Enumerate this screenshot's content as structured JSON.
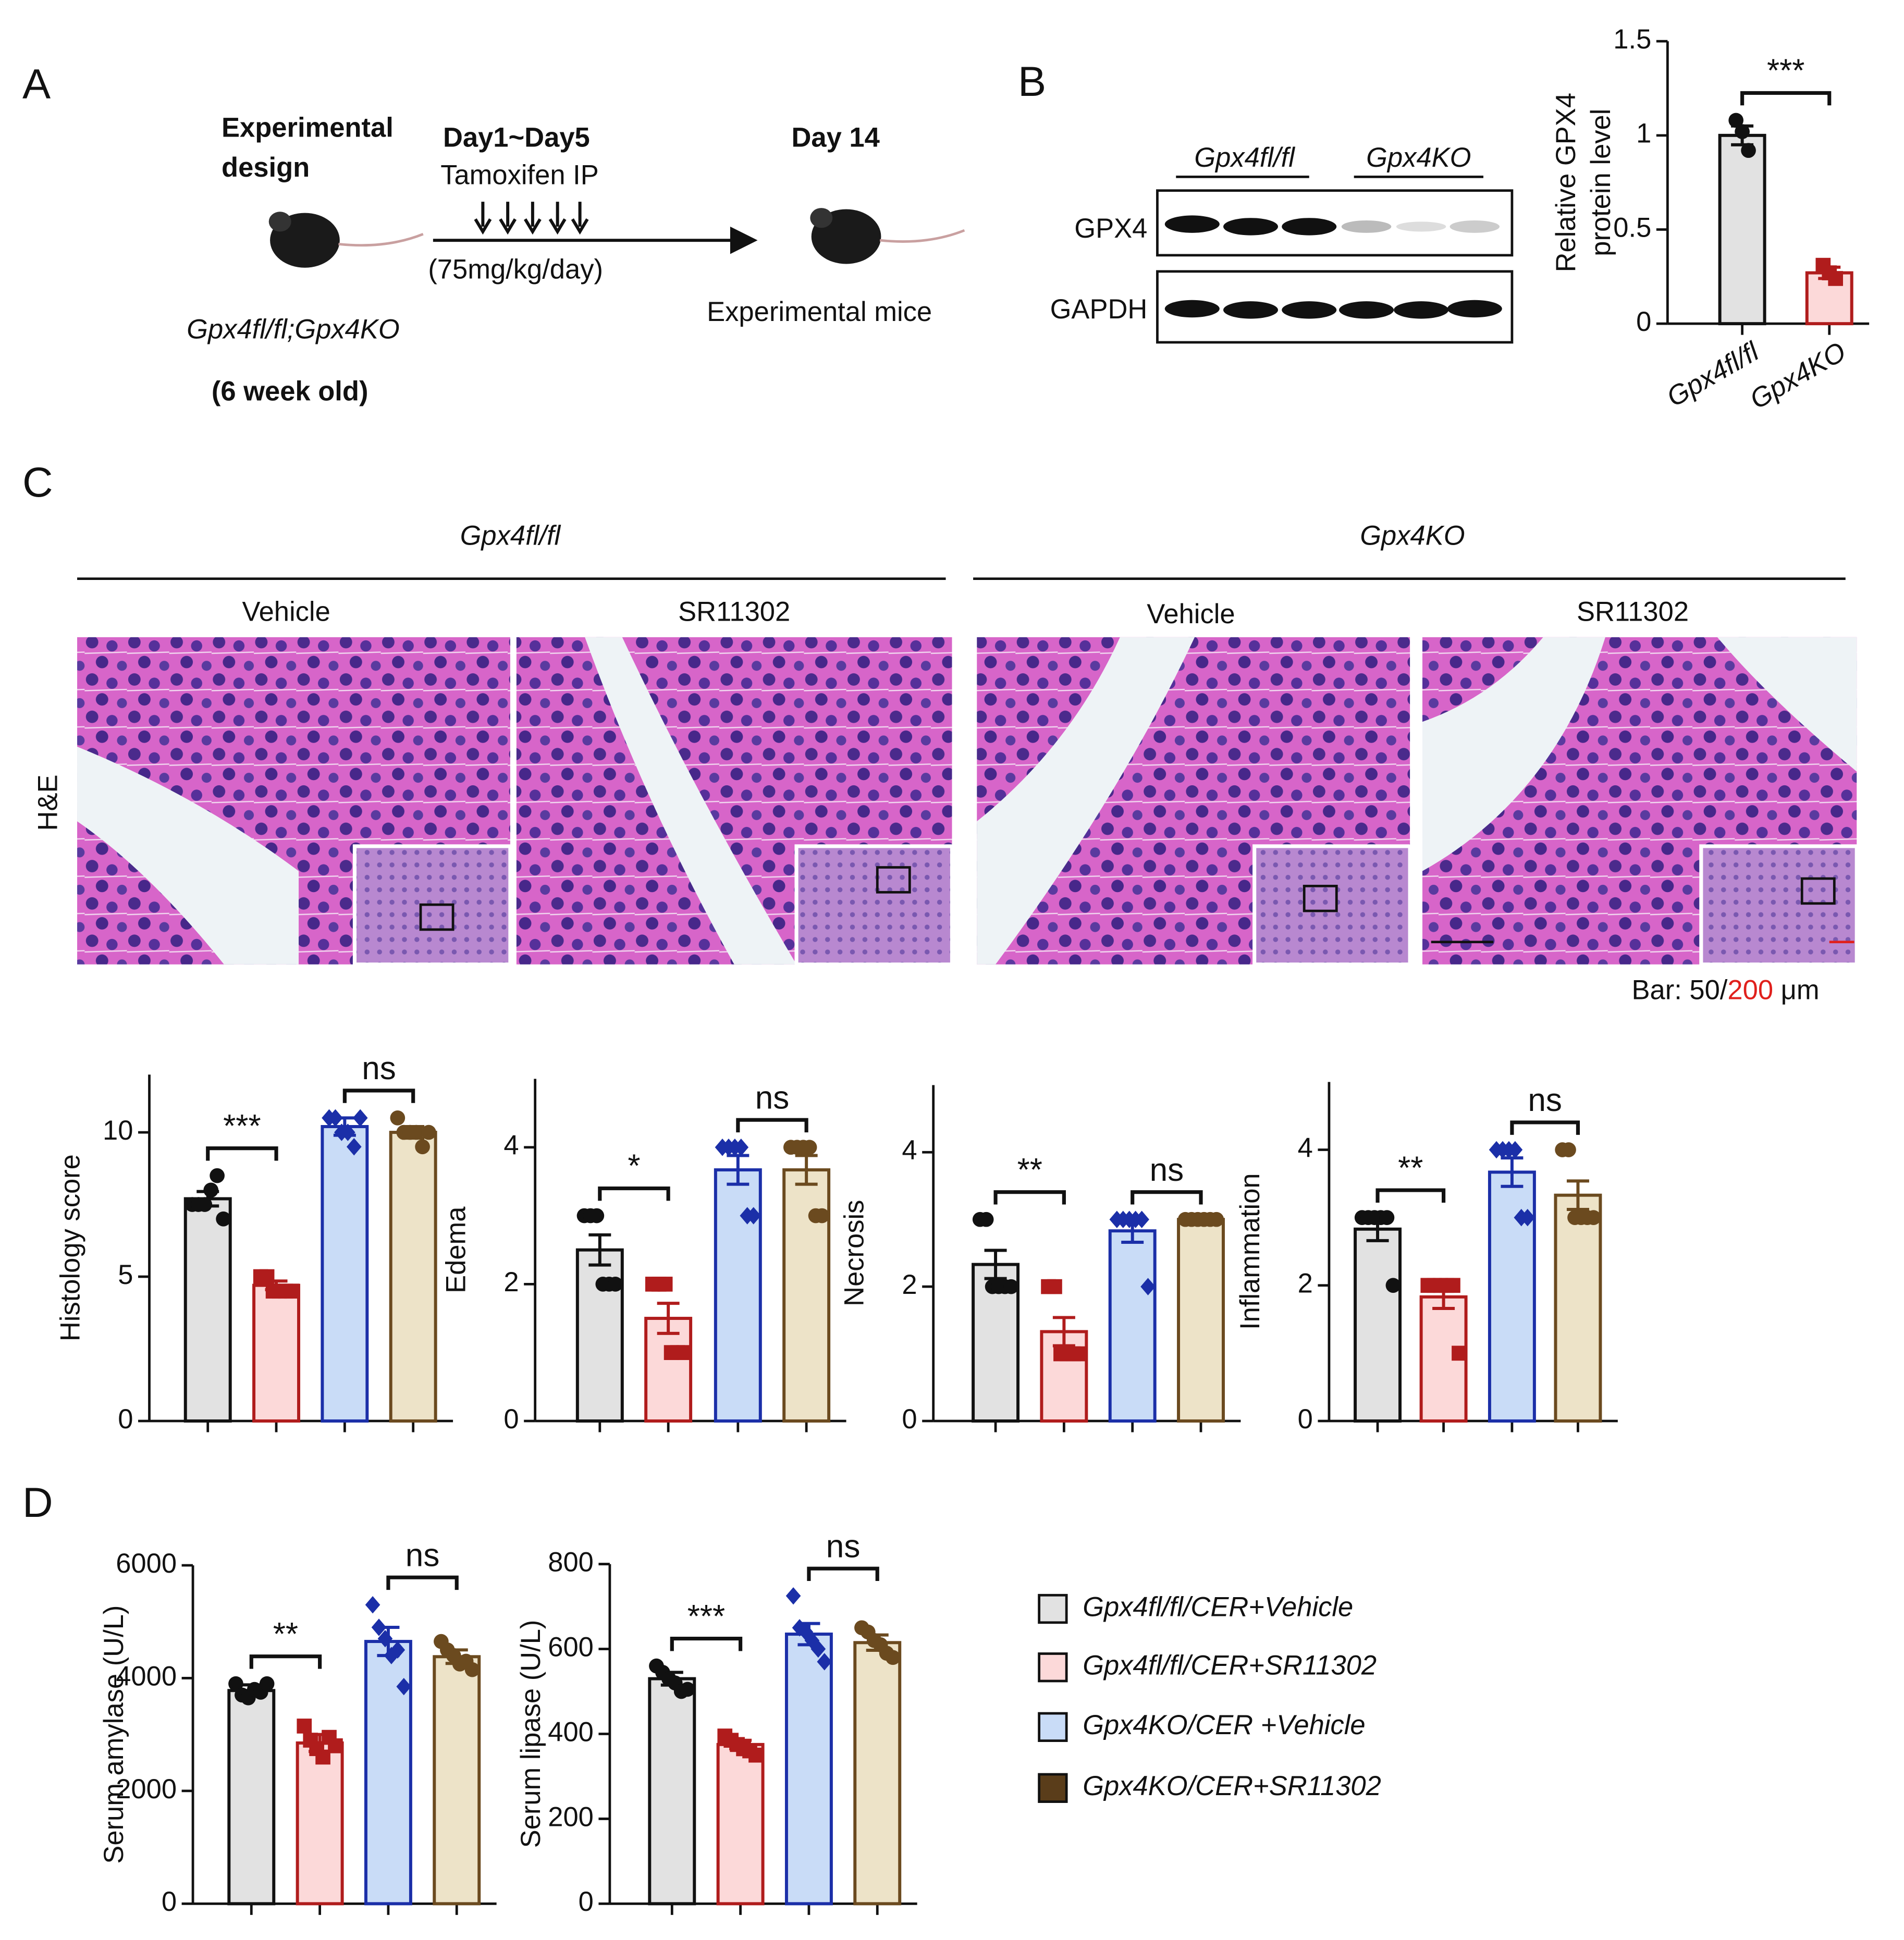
{
  "panel_labels": [
    "A",
    "B",
    "C",
    "D"
  ],
  "design": {
    "title": [
      "Experimental",
      "design"
    ],
    "period": "Day1~Day5",
    "treatment": "Tamoxifen IP",
    "dose": "(75mg/kg/day)",
    "end_day": "Day 14",
    "end_label": "Experimental mice",
    "genotype": "Gpx4fl/fl;Gpx4KO",
    "age": "(6 week old)"
  },
  "blot": {
    "groups": [
      "Gpx4fl/fl",
      "Gpx4KO"
    ],
    "rows": [
      "GPX4",
      "GAPDH"
    ]
  },
  "histology": {
    "groups": [
      "Gpx4fl/fl",
      "Gpx4KO"
    ],
    "treatments": [
      "Vehicle",
      "SR11302",
      "Vehicle",
      "SR11302"
    ],
    "stain": "H&E",
    "scale_bar": [
      "Bar: 50/",
      "200",
      " μm"
    ]
  },
  "legend": [
    {
      "name": "Gpx4fl/fl/CER+Vehicle",
      "fill": "#e2e2e2"
    },
    {
      "name": "Gpx4fl/fl/CER+SR11302",
      "fill": "#fcd9d9"
    },
    {
      "name": "Gpx4KO/CER +Vehicle",
      "fill": "#c9dcf7"
    },
    {
      "name": "Gpx4KO/CER+SR11302",
      "fill": "#5a3d1a"
    }
  ],
  "chart_data": [
    {
      "type": "bar",
      "ylabel": [
        "Relative GPX4",
        "protein level"
      ],
      "categories": [
        "Gpx4fl/fl",
        "Gpx4KO"
      ],
      "values": [
        1.0,
        0.27
      ],
      "errors": [
        0.05,
        0.03
      ],
      "points": [
        [
          1.08,
          1.02,
          0.92
        ],
        [
          0.31,
          0.27,
          0.24
        ]
      ],
      "colors": [
        "#111111",
        "#b01c1c"
      ],
      "fills": [
        "#e2e2e2",
        "#fcd9d9"
      ],
      "markers": [
        "circle",
        "square"
      ],
      "annotations": [
        "***"
      ],
      "ylim": [
        0,
        1.5
      ],
      "yticks": [
        0,
        0.5,
        1.0,
        1.5
      ]
    },
    {
      "type": "bar",
      "ylabel": [
        "Histology score"
      ],
      "categories": [
        null,
        null,
        null,
        null
      ],
      "values": [
        7.7,
        4.7,
        10.2,
        10.0
      ],
      "errors": [
        0.25,
        0.15,
        0.3,
        0.2
      ],
      "points": [
        [
          7.5,
          7.5,
          7.5,
          8.0,
          8.5,
          7.0
        ],
        [
          5.0,
          5.0,
          4.5,
          4.5,
          4.5,
          4.5
        ],
        [
          10.5,
          10.5,
          10.0,
          10.0,
          9.5,
          10.5
        ],
        [
          10.5,
          10.0,
          10.0,
          10.0,
          9.5,
          10.0
        ]
      ],
      "colors": [
        "#111111",
        "#b01c1c",
        "#1b2fa8",
        "#6b4a1f"
      ],
      "fills": [
        "#e2e2e2",
        "#fcd9d9",
        "#c9dcf7",
        "#ede3c8"
      ],
      "markers": [
        "circle",
        "square",
        "diamond",
        "circle"
      ],
      "annotations": [
        "***",
        "ns"
      ],
      "ylim": [
        0,
        12
      ],
      "yticks": [
        0,
        5,
        10
      ]
    },
    {
      "type": "bar",
      "ylabel": [
        "Edema"
      ],
      "categories": [
        null,
        null,
        null,
        null
      ],
      "values": [
        2.5,
        1.5,
        3.67,
        3.67
      ],
      "errors": [
        0.22,
        0.22,
        0.21,
        0.21
      ],
      "points": [
        [
          3,
          3,
          3,
          2,
          2,
          2
        ],
        [
          2,
          2,
          2,
          1,
          1,
          1
        ],
        [
          4,
          4,
          4,
          4,
          3,
          3
        ],
        [
          4,
          4,
          4,
          4,
          3,
          3
        ]
      ],
      "colors": [
        "#111111",
        "#b01c1c",
        "#1b2fa8",
        "#6b4a1f"
      ],
      "fills": [
        "#e2e2e2",
        "#fcd9d9",
        "#c9dcf7",
        "#ede3c8"
      ],
      "markers": [
        "circle",
        "square",
        "diamond",
        "circle"
      ],
      "annotations": [
        "*",
        "ns"
      ],
      "ylim": [
        0,
        5
      ],
      "yticks": [
        0,
        2,
        4
      ]
    },
    {
      "type": "bar",
      "ylabel": [
        "Necrosis"
      ],
      "categories": [
        null,
        null,
        null,
        null
      ],
      "values": [
        2.33,
        1.33,
        2.83,
        3.0
      ],
      "errors": [
        0.21,
        0.21,
        0.17,
        0
      ],
      "points": [
        [
          3,
          3,
          2,
          2,
          2,
          2
        ],
        [
          2,
          2,
          1,
          1,
          1,
          1
        ],
        [
          3,
          3,
          3,
          3,
          3,
          2
        ],
        [
          3,
          3,
          3,
          3,
          3,
          3
        ]
      ],
      "colors": [
        "#111111",
        "#b01c1c",
        "#1b2fa8",
        "#6b4a1f"
      ],
      "fills": [
        "#e2e2e2",
        "#fcd9d9",
        "#c9dcf7",
        "#ede3c8"
      ],
      "markers": [
        "circle",
        "square",
        "diamond",
        "circle"
      ],
      "annotations": [
        "**",
        "ns"
      ],
      "ylim": [
        0,
        5
      ],
      "yticks": [
        0,
        2,
        4
      ]
    },
    {
      "type": "bar",
      "ylabel": [
        "Inflammation"
      ],
      "categories": [
        null,
        null,
        null,
        null
      ],
      "values": [
        2.83,
        1.83,
        3.67,
        3.33
      ],
      "errors": [
        0.17,
        0.17,
        0.21,
        0.21
      ],
      "points": [
        [
          3,
          3,
          3,
          3,
          3,
          2
        ],
        [
          2,
          2,
          2,
          2,
          2,
          1
        ],
        [
          4,
          4,
          4,
          4,
          3,
          3
        ],
        [
          4,
          4,
          3,
          3,
          3,
          3
        ]
      ],
      "colors": [
        "#111111",
        "#b01c1c",
        "#1b2fa8",
        "#6b4a1f"
      ],
      "fills": [
        "#e2e2e2",
        "#fcd9d9",
        "#c9dcf7",
        "#ede3c8"
      ],
      "markers": [
        "circle",
        "square",
        "diamond",
        "circle"
      ],
      "annotations": [
        "**",
        "ns"
      ],
      "ylim": [
        0,
        5
      ],
      "yticks": [
        0,
        2,
        4
      ]
    },
    {
      "type": "bar",
      "ylabel": [
        "Serum amylase (U/L)"
      ],
      "categories": [
        null,
        null,
        null,
        null
      ],
      "values": [
        3780,
        2850,
        4650,
        4380
      ],
      "errors": [
        100,
        150,
        250,
        120
      ],
      "points": [
        [
          3900,
          3700,
          3650,
          3800,
          3750,
          3900
        ],
        [
          3150,
          2900,
          2750,
          2600,
          2950,
          2800
        ],
        [
          5300,
          4900,
          4700,
          4400,
          4500,
          3850
        ],
        [
          4650,
          4500,
          4400,
          4250,
          4300,
          4150
        ]
      ],
      "colors": [
        "#111111",
        "#b01c1c",
        "#1b2fa8",
        "#6b4a1f"
      ],
      "fills": [
        "#e2e2e2",
        "#fcd9d9",
        "#c9dcf7",
        "#ede3c8"
      ],
      "markers": [
        "circle",
        "square",
        "diamond",
        "circle"
      ],
      "annotations": [
        "**",
        "ns"
      ],
      "ylim": [
        0,
        6000
      ],
      "yticks": [
        0,
        2000,
        4000,
        6000
      ]
    },
    {
      "type": "bar",
      "ylabel": [
        "Serum lipase (U/L)"
      ],
      "categories": [
        null,
        null,
        null,
        null
      ],
      "values": [
        530,
        375,
        635,
        615
      ],
      "errors": [
        15,
        10,
        25,
        18
      ],
      "points": [
        [
          560,
          545,
          530,
          520,
          500,
          505
        ],
        [
          395,
          385,
          375,
          365,
          360,
          350
        ],
        [
          725,
          650,
          640,
          620,
          600,
          570
        ],
        [
          650,
          640,
          620,
          610,
          590,
          580
        ]
      ],
      "colors": [
        "#111111",
        "#b01c1c",
        "#1b2fa8",
        "#6b4a1f"
      ],
      "fills": [
        "#e2e2e2",
        "#fcd9d9",
        "#c9dcf7",
        "#ede3c8"
      ],
      "markers": [
        "circle",
        "square",
        "diamond",
        "circle"
      ],
      "annotations": [
        "***",
        "ns"
      ],
      "ylim": [
        0,
        800
      ],
      "yticks": [
        0,
        200,
        400,
        600,
        800
      ]
    }
  ]
}
